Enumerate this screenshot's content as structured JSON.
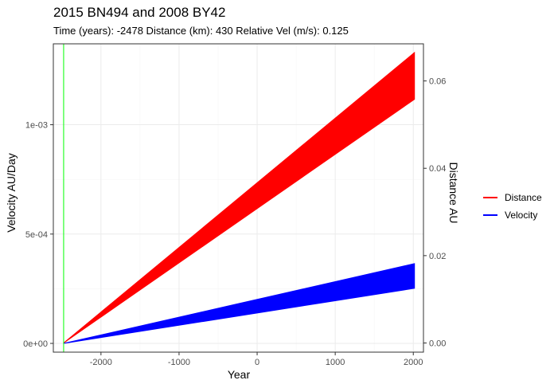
{
  "chart_data": {
    "type": "area",
    "title": "2015 BN494 and 2008 BY42",
    "subtitle": "Time (years): -2478 Distance (km): 430 Relative Vel (m/s): 0.125",
    "xlabel": "Year",
    "ylabel_left": "Velocity AU/Day",
    "ylabel_right": "Distance AU",
    "xlim": [
      -2610,
      2130
    ],
    "ylim_left": [
      -4e-05,
      0.00137
    ],
    "ylim_right": [
      -0.0021,
      0.0685
    ],
    "x_ticks": [
      -2000,
      -1000,
      0,
      1000,
      2000
    ],
    "x_tick_labels": [
      "-2000",
      "-1000",
      "0",
      "1000",
      "2000"
    ],
    "y_left_ticks": [
      0,
      0.0005,
      0.001
    ],
    "y_left_tick_labels": [
      "0e+00",
      "5e-04",
      "1e-03"
    ],
    "y_right_ticks": [
      0,
      0.02,
      0.04,
      0.06
    ],
    "y_right_tick_labels": [
      "0.00",
      "0.02",
      "0.04",
      "0.06"
    ],
    "grid": true,
    "legend_position": "right",
    "vline": {
      "x": -2478,
      "color": "#00ff00"
    },
    "series": [
      {
        "name": "Distance",
        "axis": "right",
        "color": "#ff0000",
        "x": [
          -2478,
          2015
        ],
        "upper": [
          0,
          0.0665
        ],
        "lower": [
          0,
          0.0558
        ]
      },
      {
        "name": "Velocity",
        "axis": "left",
        "color": "#0000ff",
        "x": [
          -2478,
          2015
        ],
        "upper": [
          0,
          0.000365
        ],
        "lower": [
          0,
          0.000252
        ]
      }
    ]
  }
}
